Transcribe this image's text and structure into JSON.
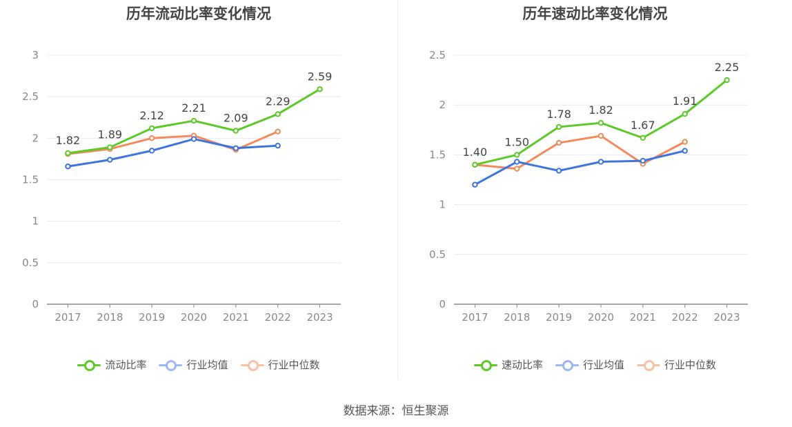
{
  "source": "数据来源：恒生聚源",
  "chart_data": [
    {
      "type": "line",
      "title": "历年流动比率变化情况",
      "categories": [
        "2017",
        "2018",
        "2019",
        "2020",
        "2021",
        "2022",
        "2023"
      ],
      "ylim": [
        0,
        3
      ],
      "yticks": [
        0,
        0.5,
        1,
        1.5,
        2,
        2.5,
        3
      ],
      "ytick_labels": [
        "0",
        "0.5",
        "1",
        "1.5",
        "2",
        "2.5",
        "3"
      ],
      "grid": true,
      "legend_position": "bottom",
      "series": [
        {
          "name": "流动比率",
          "color": "#5cc928",
          "values": [
            1.82,
            1.89,
            2.12,
            2.21,
            2.09,
            2.29,
            2.59
          ],
          "labels": [
            "1.82",
            "1.89",
            "2.12",
            "2.21",
            "2.09",
            "2.29",
            "2.59"
          ]
        },
        {
          "name": "行业均值",
          "color": "#3f74dd",
          "values": [
            1.66,
            1.74,
            1.85,
            1.99,
            1.88,
            1.91,
            null
          ]
        },
        {
          "name": "行业中位数",
          "color": "#f28a5c",
          "values": [
            1.81,
            1.87,
            2.0,
            2.03,
            1.86,
            2.08,
            null
          ]
        }
      ]
    },
    {
      "type": "line",
      "title": "历年速动比率变化情况",
      "categories": [
        "2017",
        "2018",
        "2019",
        "2020",
        "2021",
        "2022",
        "2023"
      ],
      "ylim": [
        0,
        2.5
      ],
      "yticks": [
        0,
        0.5,
        1,
        1.5,
        2,
        2.5
      ],
      "ytick_labels": [
        "0",
        "0.5",
        "1",
        "1.5",
        "2",
        "2.5"
      ],
      "grid": true,
      "legend_position": "bottom",
      "series": [
        {
          "name": "速动比率",
          "color": "#5cc928",
          "values": [
            1.4,
            1.5,
            1.78,
            1.82,
            1.67,
            1.91,
            2.25
          ],
          "labels": [
            "1.40",
            "1.50",
            "1.78",
            "1.82",
            "1.67",
            "1.91",
            "2.25"
          ]
        },
        {
          "name": "行业均值",
          "color": "#3f74dd",
          "values": [
            1.2,
            1.43,
            1.34,
            1.43,
            1.44,
            1.54,
            null
          ]
        },
        {
          "name": "行业中位数",
          "color": "#f28a5c",
          "values": [
            1.4,
            1.36,
            1.62,
            1.69,
            1.41,
            1.63,
            null
          ]
        }
      ]
    }
  ]
}
